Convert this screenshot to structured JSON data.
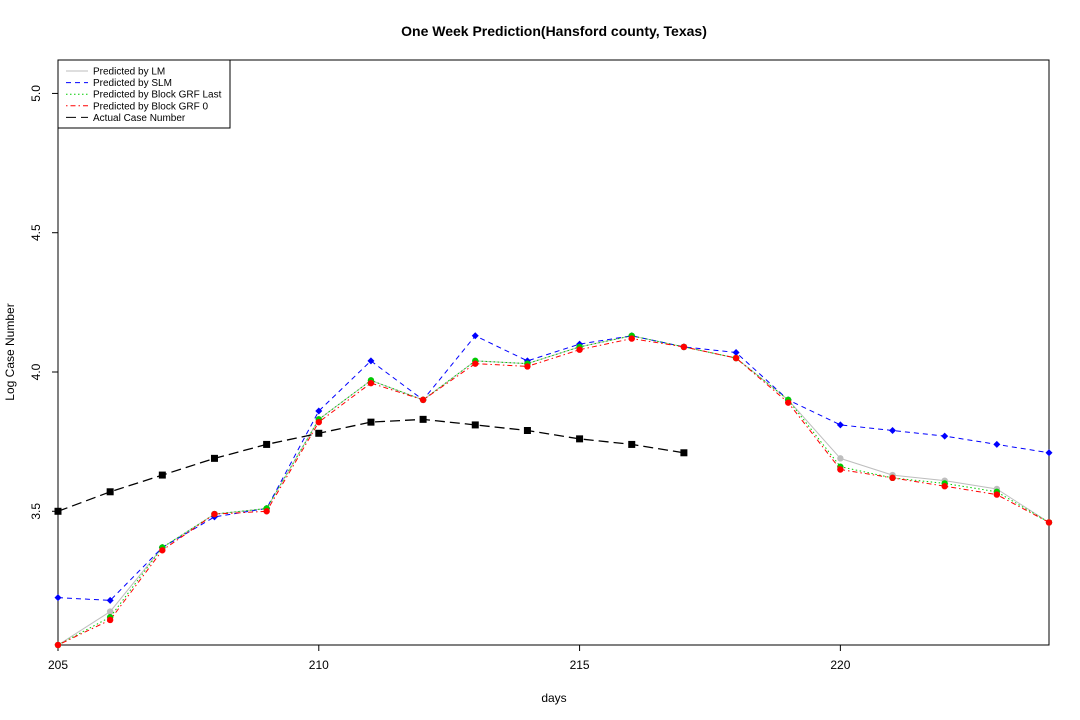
{
  "chart_data": {
    "type": "line",
    "title": "One Week Prediction(Hansford county, Texas)",
    "xlabel": "days",
    "ylabel": "Log Case Number",
    "xlim": [
      205,
      224
    ],
    "ylim": [
      3.02,
      5.12
    ],
    "x_ticks": [
      205,
      210,
      215,
      220
    ],
    "y_ticks": [
      3.5,
      4.0,
      4.5,
      5.0
    ],
    "y_tick_labels": [
      "3.5",
      "4.0",
      "4.5",
      "5.0"
    ],
    "legend_position": "top-left",
    "series": [
      {
        "name": "Predicted by LM",
        "color": "#bebebe",
        "dash": "solid",
        "marker": "circle",
        "x": [
          205,
          206,
          207,
          208,
          209,
          210,
          211,
          212,
          213,
          214,
          215,
          216,
          217,
          218,
          219,
          220,
          221,
          222,
          223,
          224
        ],
        "y": [
          3.02,
          3.14,
          3.37,
          3.49,
          3.51,
          3.83,
          3.97,
          3.9,
          4.04,
          4.03,
          4.09,
          4.13,
          4.09,
          4.05,
          3.9,
          3.69,
          3.63,
          3.61,
          3.58,
          3.46
        ]
      },
      {
        "name": "Predicted by SLM",
        "color": "#0000ff",
        "dash": "dashed",
        "marker": "diamond",
        "x": [
          205,
          206,
          207,
          208,
          209,
          210,
          211,
          212,
          213,
          214,
          215,
          216,
          217,
          218,
          219,
          220,
          221,
          222,
          223,
          224
        ],
        "y": [
          3.19,
          3.18,
          3.37,
          3.48,
          3.51,
          3.86,
          4.04,
          3.9,
          4.13,
          4.04,
          4.1,
          4.13,
          4.09,
          4.07,
          3.9,
          3.81,
          3.79,
          3.77,
          3.74,
          3.71
        ]
      },
      {
        "name": "Predicted by Block GRF Last",
        "color": "#00cc00",
        "dash": "dotted",
        "marker": "circle",
        "x": [
          205,
          206,
          207,
          208,
          209,
          210,
          211,
          212,
          213,
          214,
          215,
          216,
          217,
          218,
          219,
          220,
          221,
          222,
          223,
          224
        ],
        "y": [
          3.02,
          3.12,
          3.37,
          3.49,
          3.51,
          3.83,
          3.97,
          3.9,
          4.04,
          4.03,
          4.09,
          4.13,
          4.09,
          4.05,
          3.9,
          3.66,
          3.62,
          3.6,
          3.57,
          3.46
        ]
      },
      {
        "name": "Predicted by Block GRF 0",
        "color": "#ff0000",
        "dash": "dotdash",
        "marker": "circle",
        "x": [
          205,
          206,
          207,
          208,
          209,
          210,
          211,
          212,
          213,
          214,
          215,
          216,
          217,
          218,
          219,
          220,
          221,
          222,
          223,
          224
        ],
        "y": [
          3.02,
          3.11,
          3.36,
          3.49,
          3.5,
          3.82,
          3.96,
          3.9,
          4.03,
          4.02,
          4.08,
          4.12,
          4.09,
          4.05,
          3.89,
          3.65,
          3.62,
          3.59,
          3.56,
          3.46
        ]
      },
      {
        "name": "Actual Case Number",
        "color": "#000000",
        "dash": "longdash",
        "marker": "square",
        "x": [
          205,
          206,
          207,
          208,
          209,
          210,
          211,
          212,
          213,
          214,
          215,
          216,
          217
        ],
        "y": [
          3.5,
          3.57,
          3.63,
          3.69,
          3.74,
          3.78,
          3.82,
          3.83,
          3.81,
          3.79,
          3.76,
          3.74,
          3.71
        ]
      }
    ]
  }
}
